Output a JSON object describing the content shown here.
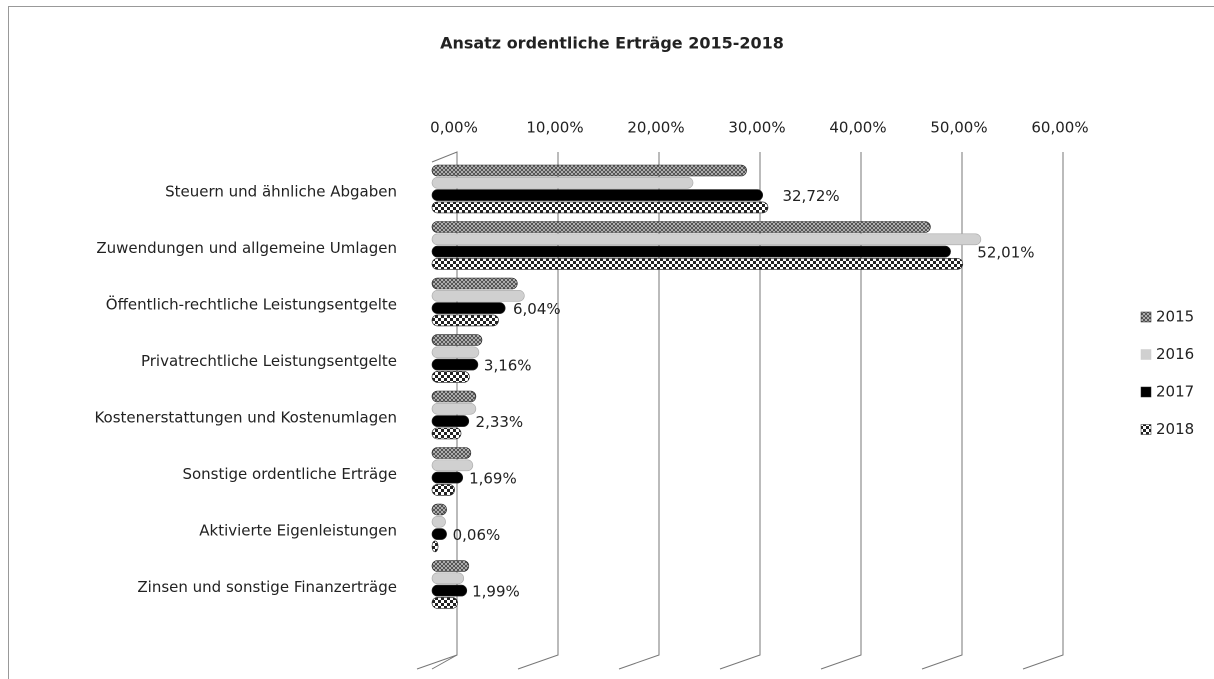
{
  "chart_data": {
    "type": "bar",
    "orientation": "horizontal",
    "title": "Ansatz ordentliche Erträge 2015-2018",
    "categories": [
      "Steuern und ähnliche Abgaben",
      "Zuwendungen und allgemeine Umlagen",
      "Öffentlich-rechtliche Leistungsentgelte",
      "Privatrechtliche Leistungsentgelte",
      "Kostenerstattungen und Kostenumlagen",
      "Sonstige ordentliche Erträge",
      "Aktivierte Eigenleistungen",
      "Zinsen und sonstige Finanzerträge"
    ],
    "series": [
      {
        "name": "2015",
        "color": "#666666",
        "values": [
          30.6,
          48.8,
          7.9,
          4.4,
          3.8,
          3.3,
          0.9,
          3.1
        ]
      },
      {
        "name": "2016",
        "color": "#d0d0d0",
        "values": [
          25.3,
          53.8,
          8.6,
          4.1,
          3.8,
          3.5,
          0.8,
          2.6
        ]
      },
      {
        "name": "2017",
        "color": "#000000",
        "values": [
          32.2,
          50.8,
          6.7,
          4.0,
          3.1,
          2.5,
          0.9,
          2.9
        ]
      },
      {
        "name": "2018",
        "color": "#333333",
        "values": [
          32.72,
          52.01,
          6.04,
          3.16,
          2.33,
          1.69,
          0.06,
          1.99
        ],
        "value_labels": [
          "32,72%",
          "52,01%",
          "6,04%",
          "3,16%",
          "2,33%",
          "1,69%",
          "0,06%",
          "1,99%"
        ]
      }
    ],
    "xlim": [
      0,
      60
    ],
    "xticks": [
      {
        "value": 0,
        "label": "0,00%"
      },
      {
        "value": 10,
        "label": "10,00%"
      },
      {
        "value": 20,
        "label": "20,00%"
      },
      {
        "value": 30,
        "label": "30,00%"
      },
      {
        "value": 40,
        "label": "40,00%"
      },
      {
        "value": 50,
        "label": "50,00%"
      },
      {
        "value": 60,
        "label": "60,00%"
      }
    ],
    "grid": true,
    "legend": "right"
  }
}
